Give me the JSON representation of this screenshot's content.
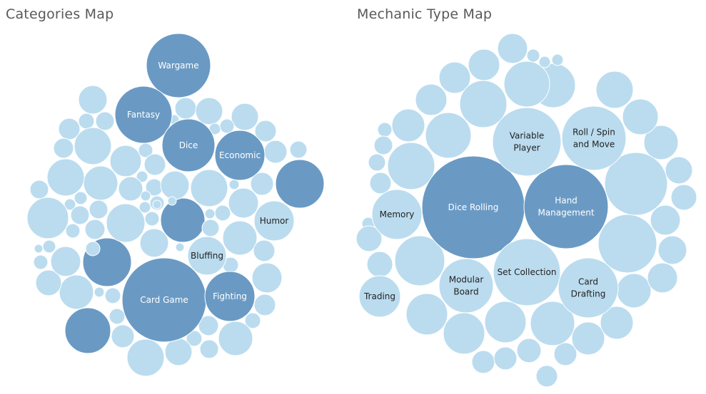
{
  "chart_data": [
    {
      "type": "packed-bubble",
      "title": "Categories Map",
      "colors": {
        "highlight": "#6a9ac4",
        "default": "#bbdcef",
        "label_on_highlight": "#ffffff",
        "label_on_default": "#222222"
      },
      "labeled_bubbles": [
        {
          "name": "Card Game",
          "highlighted": true
        },
        {
          "name": "Wargame",
          "highlighted": true
        },
        {
          "name": "Fantasy",
          "highlighted": true
        },
        {
          "name": "Dice",
          "highlighted": true
        },
        {
          "name": "Economic",
          "highlighted": true
        },
        {
          "name": "Fighting",
          "highlighted": true
        },
        {
          "name": "Humor",
          "highlighted": false
        },
        {
          "name": "Bluffing",
          "highlighted": false
        }
      ],
      "unlabeled_highlighted_count": 4
    },
    {
      "type": "packed-bubble",
      "title": "Mechanic Type Map",
      "colors": {
        "highlight": "#6a9ac4",
        "default": "#bbdcef",
        "label_on_highlight": "#ffffff",
        "label_on_default": "#222222"
      },
      "labeled_bubbles": [
        {
          "name": "Dice Rolling",
          "highlighted": true
        },
        {
          "name": "Hand Management",
          "highlighted": true
        },
        {
          "name": "Variable Player",
          "highlighted": false
        },
        {
          "name": "Roll / Spin and Move",
          "highlighted": false
        },
        {
          "name": "Set Collection",
          "highlighted": false
        },
        {
          "name": "Memory",
          "highlighted": false
        },
        {
          "name": "Modular Board",
          "highlighted": false
        },
        {
          "name": "Card Drafting",
          "highlighted": false
        },
        {
          "name": "Trading",
          "highlighted": false
        }
      ]
    }
  ]
}
